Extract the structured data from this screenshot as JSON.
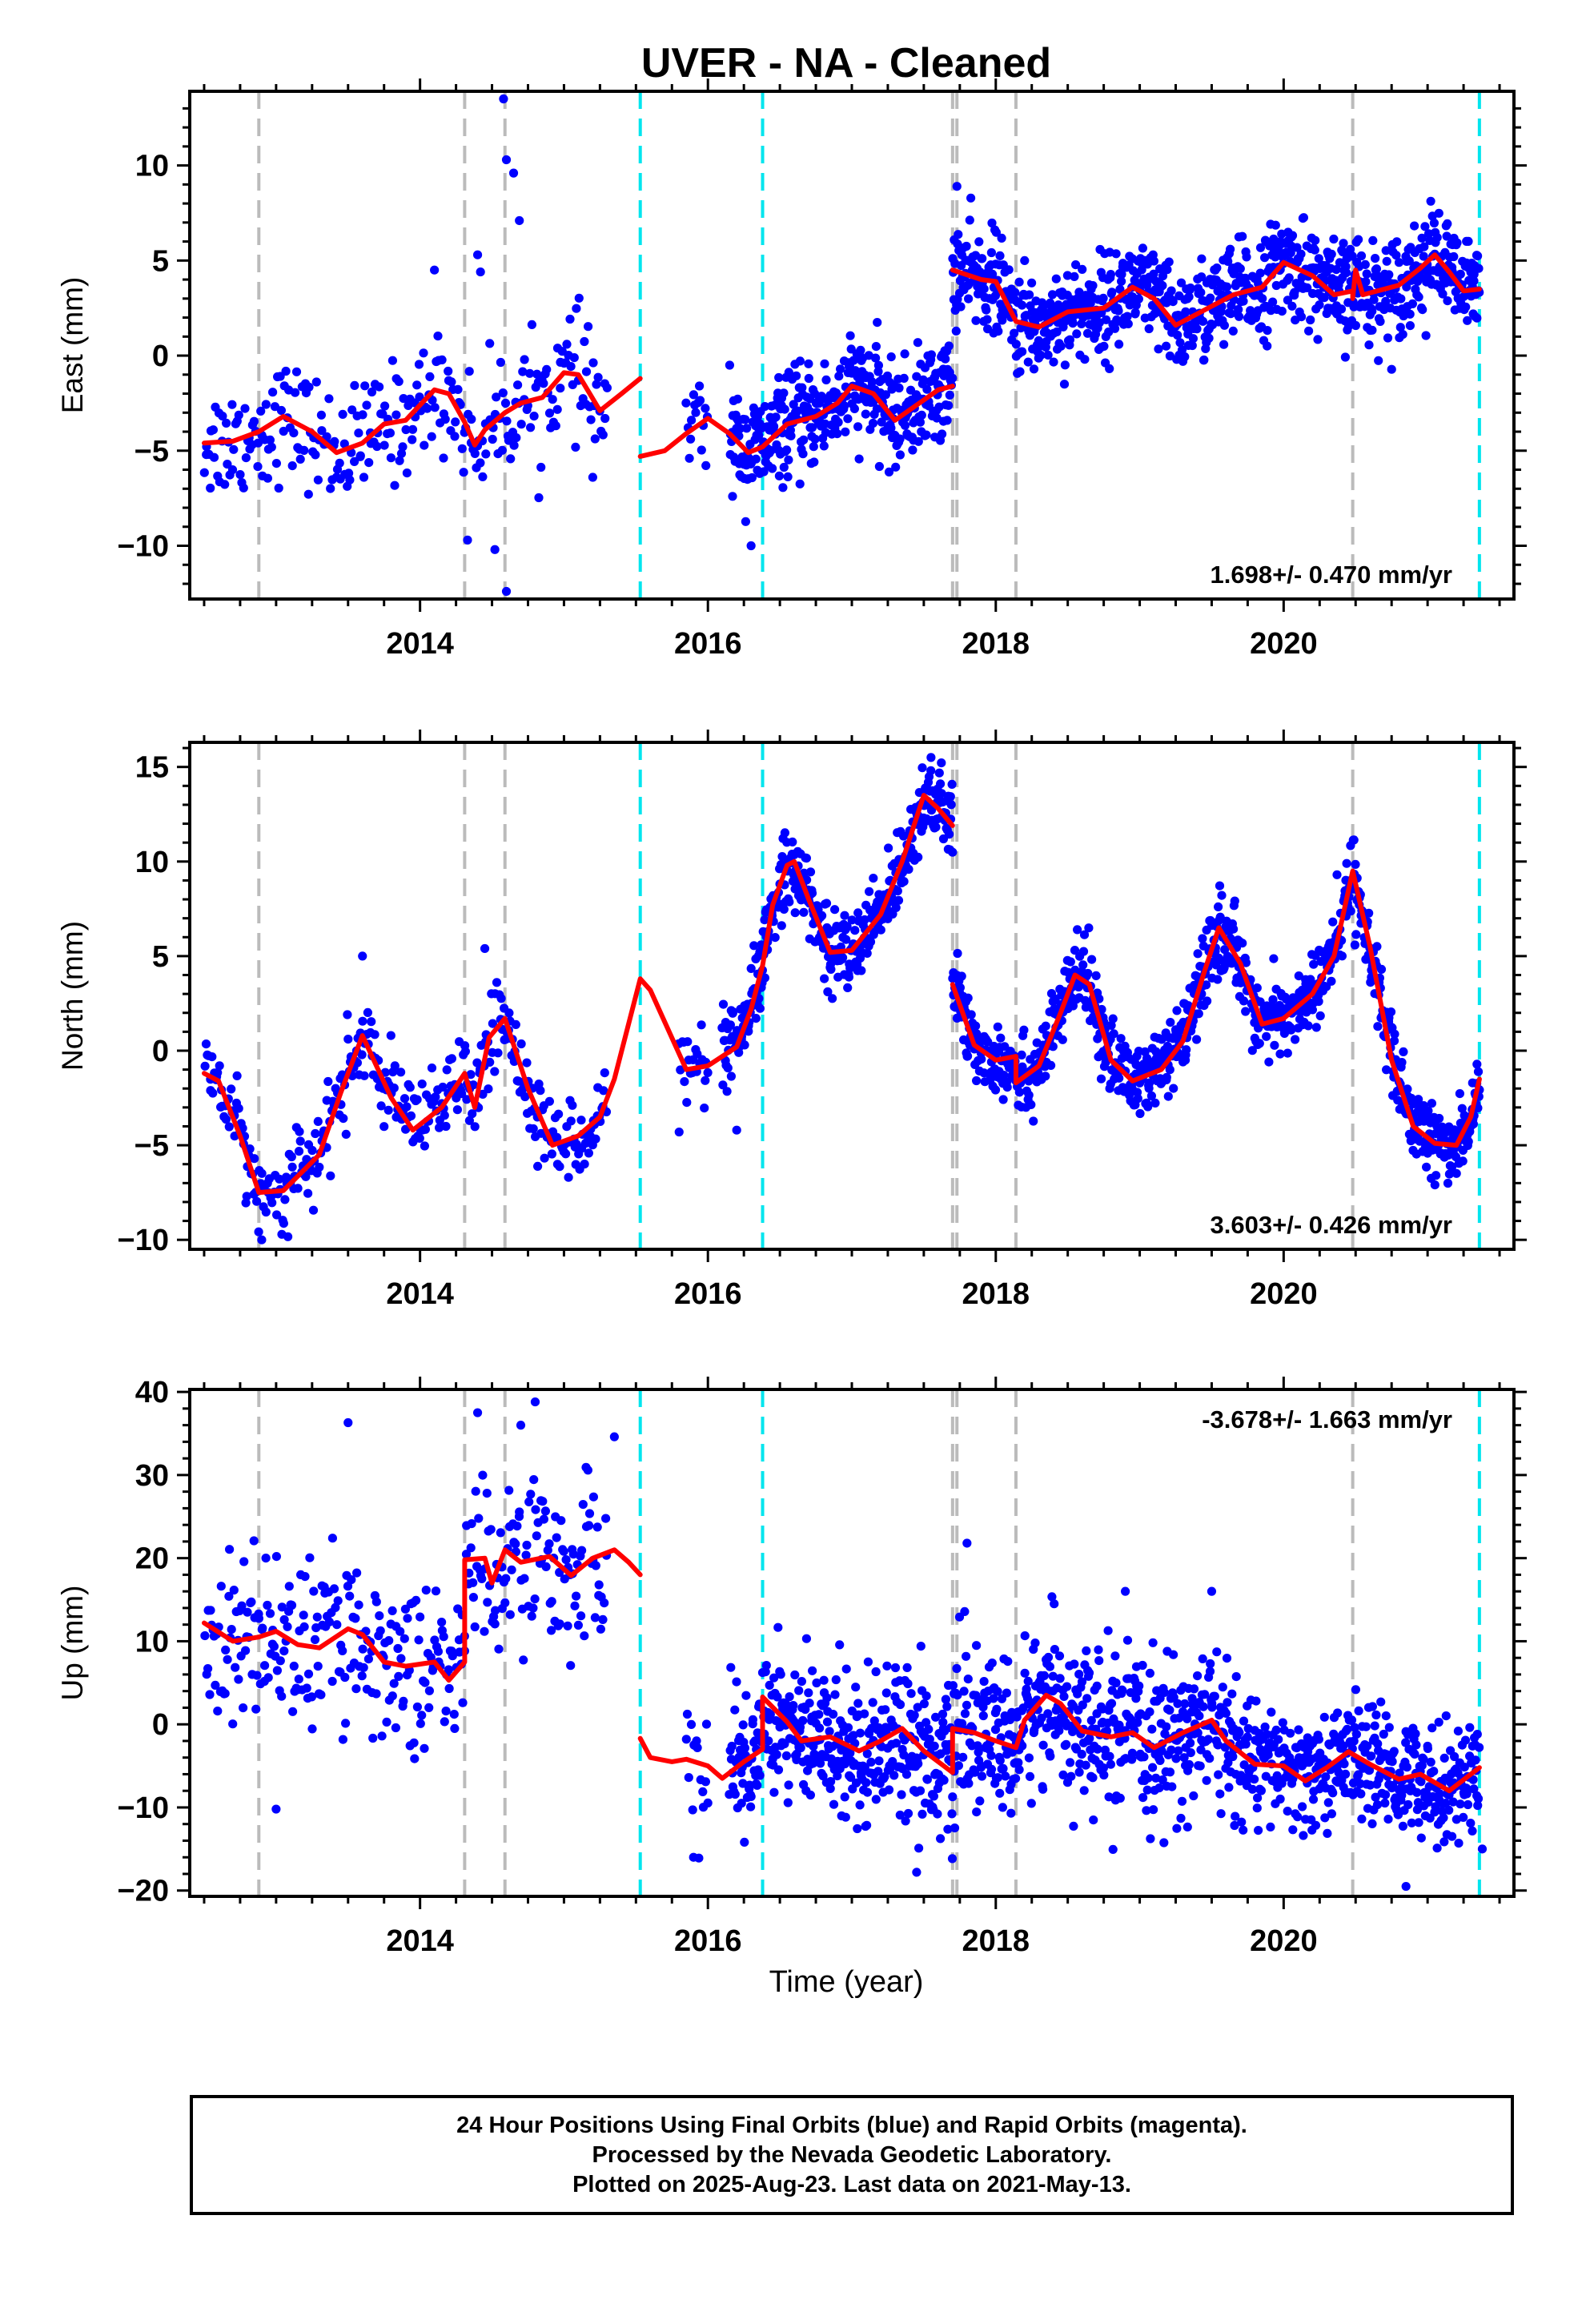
{
  "title": "UVER  - NA - Cleaned",
  "xlabel": "Time (year)",
  "caption": [
    "24 Hour Positions Using Final Orbits (blue) and Rapid Orbits (magenta).",
    "Processed by the Nevada Geodetic Laboratory.",
    "Plotted on 2025-Aug-23. Last data on 2021-May-13."
  ],
  "colors": {
    "points": "#0000ff",
    "model": "#ff0000",
    "gray_event": "#bbbbbb",
    "cyan_event": "#00e5ee",
    "axis": "#000000"
  },
  "chart_data": [
    {
      "type": "scatter",
      "component": "east",
      "ylabel": "East (mm)",
      "rate_label": "1.698+/- 0.470 mm/yr",
      "xlim": [
        2012.4,
        2021.6
      ],
      "ylim": [
        -12.8,
        13.9
      ],
      "xticks": [
        2014,
        2016,
        2018,
        2020
      ],
      "yticks": [
        -10,
        -5,
        0,
        5,
        10
      ],
      "events_gray": [
        2012.88,
        2014.31,
        2014.59,
        2017.7,
        2017.73,
        2018.14,
        2020.48
      ],
      "events_cyan": [
        2015.53,
        2016.38,
        2021.36
      ],
      "model_segments": [
        [
          [
            2012.5,
            -4.6
          ],
          [
            2012.7,
            -4.5
          ],
          [
            2012.88,
            -4.0
          ],
          [
            2013.05,
            -3.2
          ],
          [
            2013.25,
            -4.0
          ],
          [
            2013.42,
            -5.1
          ],
          [
            2013.6,
            -4.6
          ],
          [
            2013.75,
            -3.6
          ],
          [
            2013.9,
            -3.4
          ],
          [
            2014.1,
            -1.8
          ],
          [
            2014.2,
            -2.0
          ],
          [
            2014.31,
            -3.5
          ],
          [
            2014.38,
            -4.7
          ],
          [
            2014.45,
            -3.9
          ],
          [
            2014.59,
            -3.0
          ],
          [
            2014.7,
            -2.5
          ],
          [
            2014.85,
            -2.2
          ],
          [
            2015.0,
            -0.9
          ],
          [
            2015.1,
            -1.0
          ],
          [
            2015.25,
            -2.9
          ],
          [
            2015.4,
            -2.0
          ],
          [
            2015.53,
            -1.2
          ]
        ],
        [
          [
            2015.53,
            -5.3
          ],
          [
            2015.7,
            -5.0
          ],
          [
            2015.85,
            -4.1
          ],
          [
            2016.0,
            -3.3
          ],
          [
            2016.15,
            -4.1
          ],
          [
            2016.28,
            -5.1
          ],
          [
            2016.38,
            -4.8
          ],
          [
            2016.55,
            -3.6
          ],
          [
            2016.75,
            -3.2
          ],
          [
            2016.9,
            -2.5
          ],
          [
            2017.0,
            -1.6
          ],
          [
            2017.15,
            -2.0
          ],
          [
            2017.3,
            -3.4
          ],
          [
            2017.45,
            -2.6
          ],
          [
            2017.6,
            -1.8
          ],
          [
            2017.7,
            -1.6
          ]
        ],
        [
          [
            2017.7,
            4.5
          ],
          [
            2017.9,
            4.0
          ],
          [
            2018.0,
            3.9
          ],
          [
            2018.14,
            1.8
          ],
          [
            2018.3,
            1.5
          ],
          [
            2018.5,
            2.3
          ],
          [
            2018.75,
            2.5
          ],
          [
            2018.95,
            3.6
          ],
          [
            2019.1,
            3.0
          ],
          [
            2019.25,
            1.6
          ],
          [
            2019.45,
            2.4
          ],
          [
            2019.65,
            3.2
          ],
          [
            2019.85,
            3.6
          ],
          [
            2020.0,
            4.9
          ],
          [
            2020.2,
            4.2
          ],
          [
            2020.35,
            3.2
          ],
          [
            2020.48,
            3.4
          ],
          [
            2020.48,
            3.0
          ],
          [
            2020.5,
            4.5
          ],
          [
            2020.55,
            3.2
          ],
          [
            2020.8,
            3.7
          ],
          [
            2020.95,
            4.6
          ],
          [
            2021.05,
            5.3
          ],
          [
            2021.15,
            4.4
          ],
          [
            2021.25,
            3.4
          ],
          [
            2021.36,
            3.5
          ]
        ]
      ],
      "point_clusters": [
        {
          "start": 2012.5,
          "end": 2015.3,
          "step": 0.01,
          "sd": 1.5
        },
        {
          "start": 2015.85,
          "end": 2016.0,
          "step": 0.01,
          "sd": 1.5
        },
        {
          "start": 2016.15,
          "end": 2017.7,
          "step": 0.004,
          "sd": 1.3
        },
        {
          "start": 2017.7,
          "end": 2021.36,
          "step": 0.004,
          "sd": 1.3
        }
      ],
      "outliers": [
        [
          2014.1,
          4.5
        ],
        [
          2014.42,
          4.4
        ],
        [
          2014.6,
          10.3
        ],
        [
          2014.65,
          9.6
        ],
        [
          2014.69,
          7.1
        ],
        [
          2014.58,
          13.5
        ],
        [
          2014.6,
          -12.4
        ],
        [
          2014.33,
          -9.7
        ],
        [
          2014.52,
          -10.2
        ],
        [
          2014.4,
          5.3
        ],
        [
          2016.3,
          -10.0
        ],
        [
          2017.73,
          8.9
        ],
        [
          2015.2,
          -6.4
        ]
      ]
    },
    {
      "type": "scatter",
      "component": "north",
      "ylabel": "North (mm)",
      "rate_label": "3.603+/- 0.426 mm/yr",
      "xlim": [
        2012.4,
        2021.6
      ],
      "ylim": [
        -10.5,
        16.3
      ],
      "xticks": [
        2014,
        2016,
        2018,
        2020
      ],
      "yticks": [
        -10,
        -5,
        0,
        5,
        10,
        15
      ],
      "events_gray": [
        2012.88,
        2014.31,
        2014.59,
        2017.7,
        2017.73,
        2018.14,
        2020.48
      ],
      "events_cyan": [
        2015.53,
        2016.38,
        2021.36
      ],
      "model_segments": [
        [
          [
            2012.5,
            -1.2
          ],
          [
            2012.6,
            -1.6
          ],
          [
            2012.75,
            -4.5
          ],
          [
            2012.88,
            -7.5
          ],
          [
            2013.05,
            -7.4
          ],
          [
            2013.3,
            -5.5
          ],
          [
            2013.45,
            -2.2
          ],
          [
            2013.6,
            0.8
          ],
          [
            2013.8,
            -2.5
          ],
          [
            2013.95,
            -4.2
          ],
          [
            2014.15,
            -3.0
          ],
          [
            2014.31,
            -1.2
          ],
          [
            2014.38,
            -3.0
          ],
          [
            2014.48,
            0.7
          ],
          [
            2014.59,
            1.7
          ],
          [
            2014.75,
            -2.0
          ],
          [
            2014.92,
            -5.0
          ],
          [
            2015.1,
            -4.5
          ],
          [
            2015.25,
            -3.5
          ],
          [
            2015.35,
            -1.5
          ],
          [
            2015.53,
            3.8
          ],
          [
            2015.6,
            3.2
          ],
          [
            2015.85,
            -1.0
          ],
          [
            2016.0,
            -0.8
          ],
          [
            2016.2,
            0.2
          ],
          [
            2016.3,
            2.2
          ],
          [
            2016.38,
            4.5
          ],
          [
            2016.45,
            7.7
          ],
          [
            2016.55,
            9.8
          ],
          [
            2016.6,
            10.0
          ],
          [
            2016.7,
            8.0
          ],
          [
            2016.85,
            5.2
          ],
          [
            2017.0,
            5.3
          ],
          [
            2017.2,
            7.2
          ],
          [
            2017.35,
            10.0
          ],
          [
            2017.5,
            13.5
          ],
          [
            2017.6,
            12.8
          ],
          [
            2017.7,
            11.9
          ]
        ],
        [
          [
            2017.7,
            3.5
          ],
          [
            2017.85,
            0.3
          ],
          [
            2018.0,
            -0.5
          ],
          [
            2018.14,
            -0.3
          ],
          [
            2018.14,
            -1.7
          ],
          [
            2018.3,
            -0.8
          ],
          [
            2018.45,
            2.0
          ],
          [
            2018.55,
            4.0
          ],
          [
            2018.65,
            3.5
          ],
          [
            2018.8,
            -0.5
          ],
          [
            2018.95,
            -1.6
          ],
          [
            2019.15,
            -1.0
          ],
          [
            2019.3,
            0.5
          ],
          [
            2019.45,
            4.2
          ],
          [
            2019.55,
            6.5
          ],
          [
            2019.7,
            4.6
          ],
          [
            2019.85,
            1.4
          ],
          [
            2020.0,
            1.7
          ],
          [
            2020.2,
            3.0
          ],
          [
            2020.35,
            5.0
          ],
          [
            2020.48,
            9.5
          ],
          [
            2020.6,
            5.5
          ],
          [
            2020.75,
            -0.5
          ],
          [
            2020.9,
            -4.0
          ],
          [
            2021.05,
            -4.9
          ],
          [
            2021.2,
            -5.0
          ],
          [
            2021.3,
            -3.5
          ],
          [
            2021.36,
            -1.5
          ]
        ]
      ],
      "point_clusters": [
        {
          "start": 2012.5,
          "end": 2015.3,
          "step": 0.008,
          "sd": 1.1
        },
        {
          "start": 2015.8,
          "end": 2016.0,
          "step": 0.01,
          "sd": 1.0
        },
        {
          "start": 2016.1,
          "end": 2017.7,
          "step": 0.004,
          "sd": 1.0
        },
        {
          "start": 2017.7,
          "end": 2021.36,
          "step": 0.004,
          "sd": 1.0
        }
      ],
      "outliers": [
        [
          2012.9,
          -10.0
        ],
        [
          2013.6,
          5.0
        ],
        [
          2014.45,
          5.4
        ],
        [
          2015.8,
          -4.3
        ],
        [
          2016.2,
          -4.2
        ],
        [
          2017.55,
          15.5
        ]
      ]
    },
    {
      "type": "scatter",
      "component": "up",
      "ylabel": "Up (mm)",
      "rate_label": "-3.678+/- 1.663 mm/yr",
      "xlim": [
        2012.4,
        2021.6
      ],
      "ylim": [
        -20.7,
        40.3
      ],
      "xticks": [
        2014,
        2016,
        2018,
        2020
      ],
      "yticks": [
        -20,
        -10,
        0,
        10,
        20,
        30,
        40
      ],
      "events_gray": [
        2012.88,
        2014.31,
        2014.59,
        2017.7,
        2017.73,
        2018.14,
        2020.48
      ],
      "events_cyan": [
        2015.53,
        2016.38,
        2021.36
      ],
      "model_segments": [
        [
          [
            2012.5,
            12.2
          ],
          [
            2012.7,
            10.0
          ],
          [
            2012.88,
            10.5
          ],
          [
            2013.0,
            11.2
          ],
          [
            2013.15,
            9.6
          ],
          [
            2013.3,
            9.2
          ],
          [
            2013.5,
            11.5
          ],
          [
            2013.6,
            10.8
          ],
          [
            2013.75,
            7.5
          ],
          [
            2013.9,
            7.0
          ],
          [
            2014.1,
            7.5
          ],
          [
            2014.2,
            5.3
          ],
          [
            2014.31,
            7.5
          ],
          [
            2014.31,
            19.8
          ],
          [
            2014.45,
            20.0
          ],
          [
            2014.5,
            17.0
          ],
          [
            2014.59,
            21.0
          ],
          [
            2014.7,
            19.5
          ],
          [
            2014.9,
            20.2
          ],
          [
            2015.05,
            17.9
          ],
          [
            2015.2,
            20.0
          ],
          [
            2015.35,
            21.0
          ],
          [
            2015.45,
            19.5
          ],
          [
            2015.53,
            18.0
          ]
        ],
        [
          [
            2015.53,
            -1.7
          ],
          [
            2015.6,
            -4.0
          ],
          [
            2015.75,
            -4.5
          ],
          [
            2015.85,
            -4.2
          ],
          [
            2016.0,
            -5.0
          ],
          [
            2016.1,
            -6.5
          ],
          [
            2016.25,
            -4.5
          ],
          [
            2016.38,
            -3.0
          ],
          [
            2016.38,
            3.3
          ],
          [
            2016.55,
            0.3
          ],
          [
            2016.65,
            -2.0
          ],
          [
            2016.85,
            -1.5
          ],
          [
            2017.05,
            -3.2
          ],
          [
            2017.2,
            -2.0
          ],
          [
            2017.35,
            -0.5
          ],
          [
            2017.5,
            -3.2
          ],
          [
            2017.7,
            -5.8
          ],
          [
            2017.7,
            -0.5
          ],
          [
            2017.85,
            -1.0
          ],
          [
            2018.0,
            -2.0
          ],
          [
            2018.14,
            -2.8
          ],
          [
            2018.2,
            0.5
          ],
          [
            2018.35,
            3.5
          ],
          [
            2018.45,
            2.5
          ],
          [
            2018.6,
            -0.8
          ],
          [
            2018.8,
            -1.5
          ],
          [
            2018.95,
            -1.0
          ],
          [
            2019.1,
            -2.8
          ],
          [
            2019.3,
            -1.0
          ],
          [
            2019.5,
            0.5
          ],
          [
            2019.6,
            -2.0
          ],
          [
            2019.8,
            -4.8
          ],
          [
            2020.0,
            -5.0
          ],
          [
            2020.15,
            -6.8
          ],
          [
            2020.3,
            -5.2
          ],
          [
            2020.45,
            -3.3
          ],
          [
            2020.6,
            -4.8
          ],
          [
            2020.8,
            -6.6
          ],
          [
            2020.95,
            -6.0
          ],
          [
            2021.15,
            -8.0
          ],
          [
            2021.3,
            -6.0
          ],
          [
            2021.36,
            -5.2
          ]
        ]
      ],
      "point_clusters": [
        {
          "start": 2012.5,
          "end": 2014.31,
          "step": 0.008,
          "sd": 5.0
        },
        {
          "start": 2014.31,
          "end": 2015.3,
          "step": 0.008,
          "sd": 5.0
        },
        {
          "start": 2015.85,
          "end": 2016.0,
          "step": 0.01,
          "sd": 4.0
        },
        {
          "start": 2016.15,
          "end": 2017.7,
          "step": 0.004,
          "sd": 4.5
        },
        {
          "start": 2017.7,
          "end": 2019.75,
          "step": 0.004,
          "sd": 4.5
        },
        {
          "start": 2019.75,
          "end": 2021.36,
          "step": 0.004,
          "sd": 3.3
        }
      ],
      "outliers": [
        [
          2013.5,
          36.3
        ],
        [
          2014.4,
          37.5
        ],
        [
          2014.8,
          38.8
        ],
        [
          2014.7,
          36.0
        ],
        [
          2015.35,
          34.6
        ],
        [
          2017.8,
          21.8
        ],
        [
          2018.9,
          16.0
        ],
        [
          2019.5,
          16.0
        ],
        [
          2013.0,
          -10.2
        ],
        [
          2020.85,
          -19.5
        ],
        [
          2015.9,
          -16.0
        ],
        [
          2021.38,
          -15.0
        ],
        [
          2017.45,
          -17.8
        ]
      ]
    }
  ]
}
